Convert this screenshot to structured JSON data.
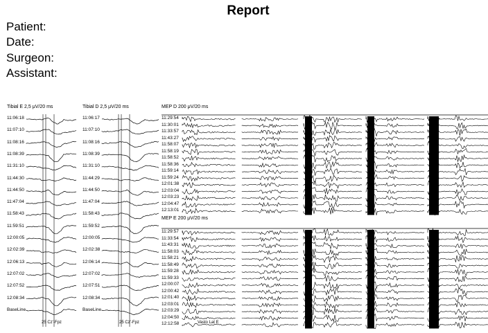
{
  "report": {
    "title": "Report",
    "fields": [
      "Patient:",
      "Date:",
      "Surgeon:",
      "Assistant:"
    ]
  },
  "ssep_panels": [
    {
      "label": "Tibial E  2,5 μV/20 ms",
      "times": [
        "11:06:18",
        "11:07:10",
        "11:08:16",
        "11:08:39",
        "11:31:10",
        "11:44:30",
        "11:44:50",
        "11:47:04",
        "11:58:43",
        "11:59:51",
        "12:00:05",
        "12:02:39",
        "12:06:13",
        "12:07:02",
        "12:07:52",
        "12:08:34",
        "BaseLine"
      ],
      "footer": "25 Cz'-Fpz"
    },
    {
      "label": "Tibial D  2,5 μV/20 ms",
      "times": [
        "11:06:17",
        "11:07:10",
        "11:08:16",
        "11:08:39",
        "11:31:10",
        "11:44:29",
        "11:44:50",
        "11:47:04",
        "11:58:43",
        "11:59:52",
        "12:00:05",
        "12:02:38",
        "12:06:14",
        "12:07:02",
        "12:07:51",
        "12:08:34",
        "BaseLine"
      ],
      "footer": "25 Cz'-Fpz"
    }
  ],
  "mep_panels": [
    {
      "label": "MEP D  200 μV/20 ms",
      "times": [
        "11:29:54",
        "11:30:01",
        "11:33:57",
        "11:43:27",
        "11:58:07",
        "11:58:19",
        "11:58:52",
        "11:58:36",
        "11:59:14",
        "11:59:24",
        "12:01:38",
        "12:03:04",
        "12:03:23",
        "12:04:47",
        "12:13:01"
      ]
    },
    {
      "label": "MEP E  200 μV/20 ms",
      "times": [
        "11:29:57",
        "11:33:54",
        "11:43:31",
        "11:58:03",
        "11:58:21",
        "11:58:49",
        "11:59:28",
        "11:59:33",
        "12:00:07",
        "12:00:42",
        "12:01:40",
        "12:03:01",
        "12:03:29",
        "12:04:50",
        "12:12:58"
      ],
      "footer": "Vasto Lat E"
    }
  ]
}
